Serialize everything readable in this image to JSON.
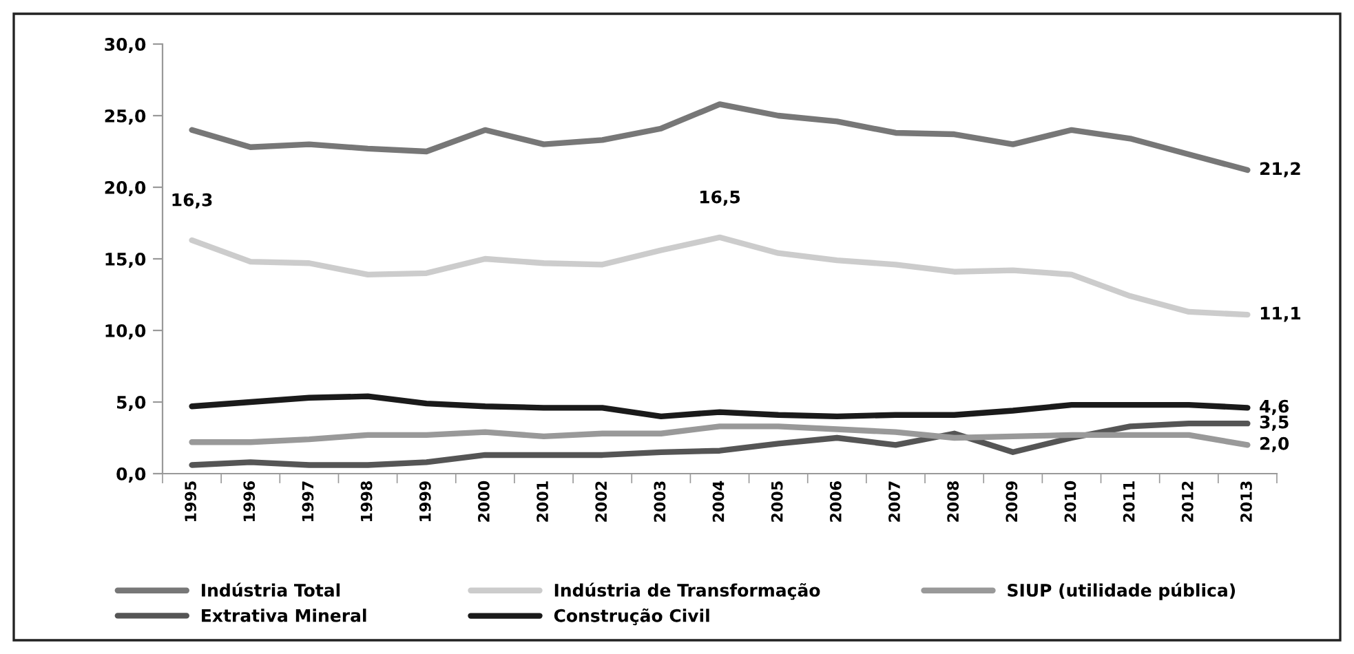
{
  "chart_data": {
    "type": "line",
    "categories": [
      "1995",
      "1996",
      "1997",
      "1998",
      "1999",
      "2000",
      "2001",
      "2002",
      "2003",
      "2004",
      "2005",
      "2006",
      "2007",
      "2008",
      "2009",
      "2010",
      "2011",
      "2012",
      "2013"
    ],
    "series": [
      {
        "name": "Indústria Total",
        "color": "#777777",
        "values": [
          24.0,
          22.8,
          23.0,
          22.7,
          22.5,
          24.0,
          23.0,
          23.3,
          24.1,
          25.8,
          25.0,
          24.6,
          23.8,
          23.7,
          23.0,
          24.0,
          23.4,
          22.3,
          21.2
        ],
        "value_labels": [
          null,
          null,
          null,
          null,
          null,
          null,
          null,
          null,
          null,
          null,
          null,
          null,
          null,
          null,
          null,
          null,
          null,
          null,
          "21,2"
        ]
      },
      {
        "name": "Extrativa Mineral",
        "color": "#555555",
        "values": [
          0.6,
          0.8,
          0.6,
          0.6,
          0.8,
          1.3,
          1.3,
          1.3,
          1.5,
          1.6,
          2.1,
          2.5,
          2.0,
          2.8,
          1.5,
          2.5,
          3.3,
          3.5,
          3.5
        ],
        "value_labels": [
          null,
          null,
          null,
          null,
          null,
          null,
          null,
          null,
          null,
          null,
          null,
          null,
          null,
          null,
          null,
          null,
          null,
          null,
          "3,5"
        ]
      },
      {
        "name": "Indústria de Transformação",
        "color": "#cccccc",
        "values": [
          16.3,
          14.8,
          14.7,
          13.9,
          14.0,
          15.0,
          14.7,
          14.6,
          15.6,
          16.5,
          15.4,
          14.9,
          14.6,
          14.1,
          14.2,
          13.9,
          12.4,
          11.3,
          11.1
        ],
        "value_labels": [
          "16,3",
          null,
          null,
          null,
          null,
          null,
          null,
          null,
          null,
          "16,5",
          null,
          null,
          null,
          null,
          null,
          null,
          null,
          null,
          "11,1"
        ]
      },
      {
        "name": "Construção Civil",
        "color": "#1a1a1a",
        "values": [
          4.7,
          5.0,
          5.3,
          5.4,
          4.9,
          4.7,
          4.6,
          4.6,
          4.0,
          4.3,
          4.1,
          4.0,
          4.1,
          4.1,
          4.4,
          4.8,
          4.8,
          4.8,
          4.6
        ],
        "value_labels": [
          null,
          null,
          null,
          null,
          null,
          null,
          null,
          null,
          null,
          null,
          null,
          null,
          null,
          null,
          null,
          null,
          null,
          null,
          "4,6"
        ]
      },
      {
        "name": "SIUP (utilidade pública)",
        "color": "#999999",
        "values": [
          2.2,
          2.2,
          2.4,
          2.7,
          2.7,
          2.9,
          2.6,
          2.8,
          2.8,
          3.3,
          3.3,
          3.1,
          2.9,
          2.5,
          2.6,
          2.7,
          2.7,
          2.7,
          2.0
        ],
        "value_labels": [
          null,
          null,
          null,
          null,
          null,
          null,
          null,
          null,
          null,
          null,
          null,
          null,
          null,
          null,
          null,
          null,
          null,
          null,
          "2,0"
        ]
      }
    ],
    "ylim": [
      0,
      30
    ],
    "yticks": [
      {
        "value": 0,
        "label": "0,0"
      },
      {
        "value": 5,
        "label": "5,0"
      },
      {
        "value": 10,
        "label": "10,0"
      },
      {
        "value": 15,
        "label": "15,0"
      },
      {
        "value": 20,
        "label": "20,0"
      },
      {
        "value": 25,
        "label": "25,0"
      },
      {
        "value": 30,
        "label": "30,0"
      }
    ],
    "grid": false,
    "legend": "bottom",
    "marker": "none",
    "line_style": "solid"
  }
}
